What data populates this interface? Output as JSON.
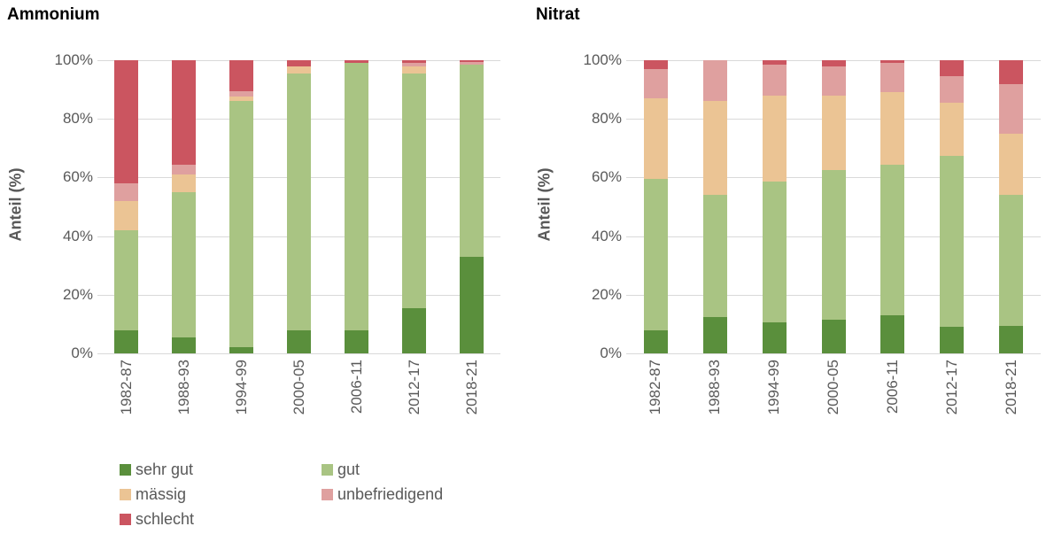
{
  "chart_data": [
    {
      "type": "bar",
      "stacked": true,
      "title": "Ammonium",
      "xlabel": "",
      "ylabel": "Anteil (%)",
      "ylim": [
        0,
        100
      ],
      "yticks": [
        "0%",
        "20%",
        "40%",
        "60%",
        "80%",
        "100%"
      ],
      "grid": "horizontal",
      "legend_position": "bottom-left",
      "categories": [
        "1982-87",
        "1988-93",
        "1994-99",
        "2000-05",
        "2006-11",
        "2012-17",
        "2018-21"
      ],
      "series": [
        {
          "name": "sehr gut",
          "color": "#5a8f3c",
          "values": [
            8,
            5.5,
            2,
            8,
            8,
            15.5,
            33
          ]
        },
        {
          "name": "gut",
          "color": "#a9c483",
          "values": [
            34,
            49.5,
            84,
            87.5,
            91,
            80,
            65.5
          ]
        },
        {
          "name": "mässig",
          "color": "#ebc494",
          "values": [
            10,
            6,
            1.5,
            2.5,
            0,
            2.5,
            0
          ]
        },
        {
          "name": "unbefriedigend",
          "color": "#dfa09f",
          "values": [
            6,
            3.5,
            2,
            0,
            0,
            1,
            1
          ]
        },
        {
          "name": "schlecht",
          "color": "#cb5560",
          "values": [
            42,
            35.5,
            10.5,
            2,
            1,
            1,
            0.5
          ]
        }
      ]
    },
    {
      "type": "bar",
      "stacked": true,
      "title": "Nitrat",
      "xlabel": "",
      "ylabel": "Anteil (%)",
      "ylim": [
        0,
        100
      ],
      "yticks": [
        "0%",
        "20%",
        "40%",
        "60%",
        "80%",
        "100%"
      ],
      "grid": "horizontal",
      "legend_position": "none",
      "categories": [
        "1982-87",
        "1988-93",
        "1994-99",
        "2000-05",
        "2006-11",
        "2012-17",
        "2018-21"
      ],
      "series": [
        {
          "name": "sehr gut",
          "color": "#5a8f3c",
          "values": [
            8,
            12.5,
            10.5,
            11.5,
            13,
            9,
            9.5
          ]
        },
        {
          "name": "gut",
          "color": "#a9c483",
          "values": [
            51.5,
            41.5,
            48,
            51,
            51.5,
            58.5,
            44.5
          ]
        },
        {
          "name": "mässig",
          "color": "#ebc494",
          "values": [
            27.5,
            32,
            29.5,
            25.5,
            24.5,
            18,
            21
          ]
        },
        {
          "name": "unbefriedigend",
          "color": "#dfa09f",
          "values": [
            10,
            14,
            10.5,
            10,
            10,
            9,
            17
          ]
        },
        {
          "name": "schlecht",
          "color": "#cb5560",
          "values": [
            3,
            0,
            1.5,
            2,
            1,
            5.5,
            8
          ]
        }
      ]
    }
  ],
  "legend": {
    "items": [
      {
        "label": "sehr gut",
        "color": "#5a8f3c"
      },
      {
        "label": "gut",
        "color": "#a9c483"
      },
      {
        "label": "mässig",
        "color": "#ebc494"
      },
      {
        "label": "unbefriedigend",
        "color": "#dfa09f"
      },
      {
        "label": "schlecht",
        "color": "#cb5560"
      }
    ]
  },
  "theme": {
    "grid_color": "#d9d9d9",
    "axis_text_color": "#595959",
    "title_color": "#000000",
    "background": "#ffffff"
  }
}
